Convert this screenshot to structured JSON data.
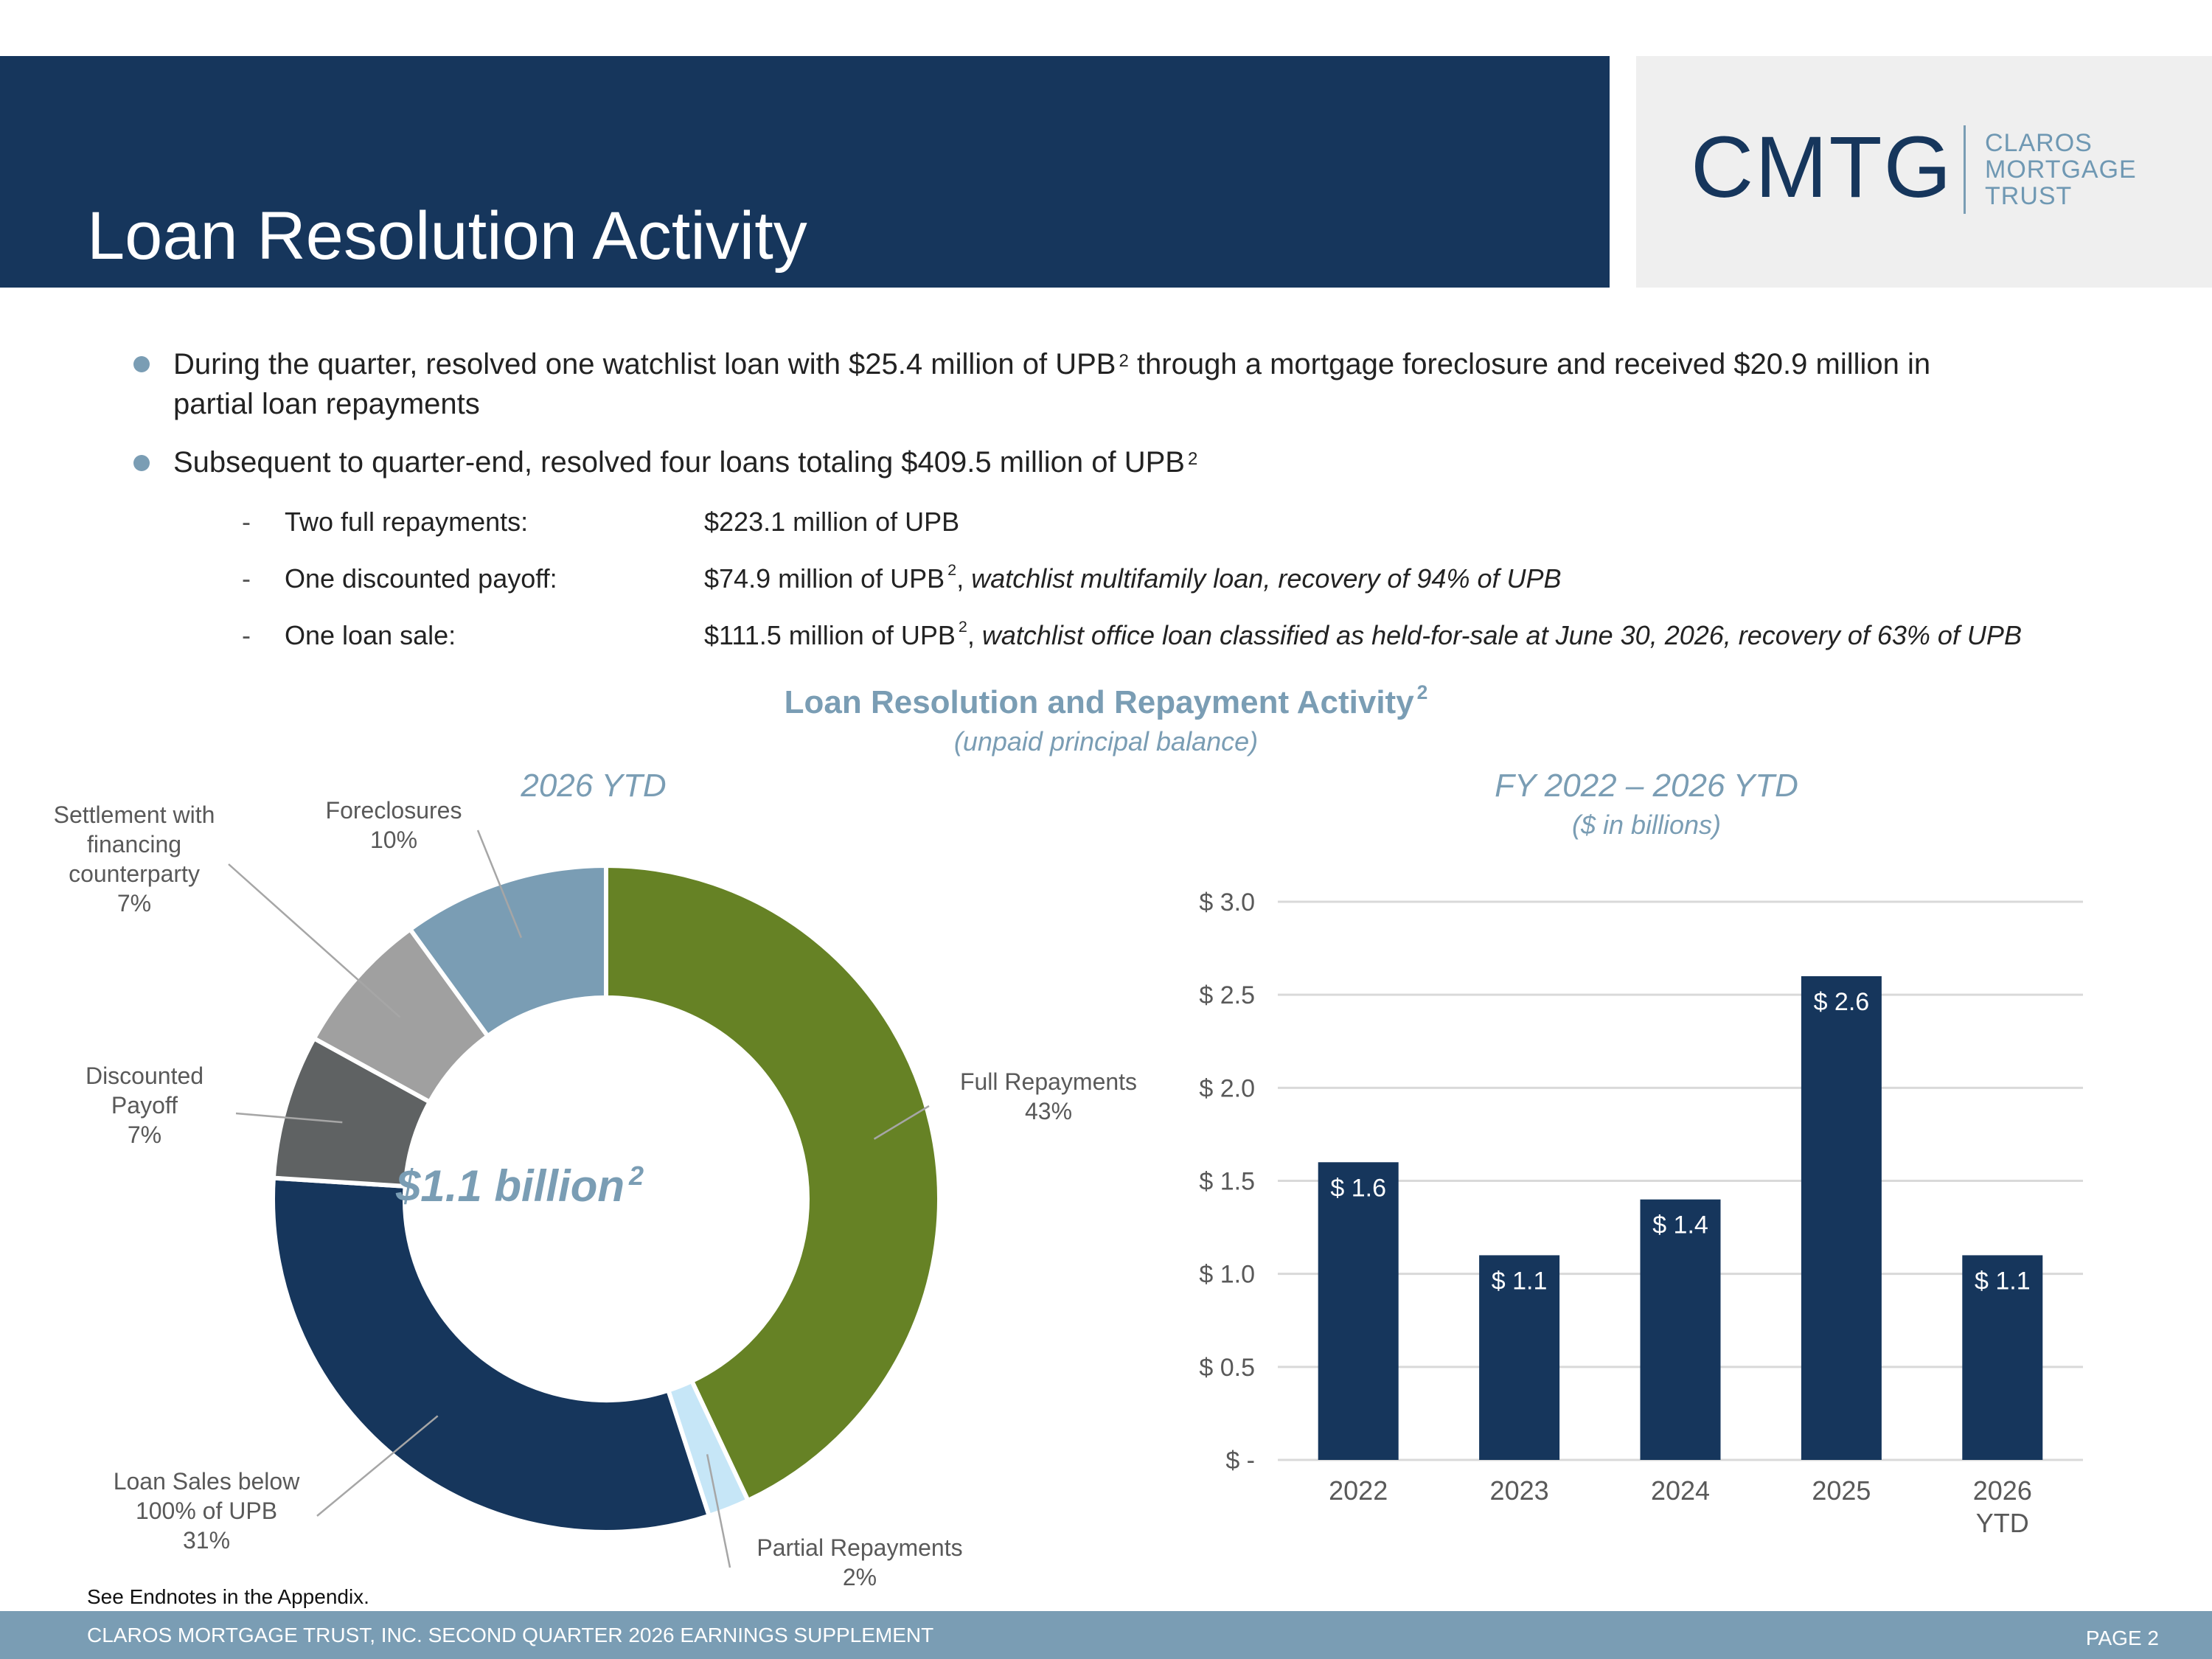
{
  "header": {
    "title": "Loan Resolution Activity",
    "logo": {
      "mark": "CMTG",
      "words": [
        "CLAROS",
        "MORTGAGE",
        "TRUST"
      ]
    }
  },
  "bullets": [
    {
      "text": "During the quarter, resolved one watchlist loan with $25.4 million of UPB",
      "sup": "2",
      "text2": " through a mortgage foreclosure and received $20.9 million in",
      "line2": "partial loan repayments"
    },
    {
      "text": "Subsequent to quarter-end, resolved four loans totaling $409.5 million of UPB",
      "sup": "2"
    }
  ],
  "sub_items": [
    {
      "label": "Two full repayments:",
      "value": "$223.1 million of UPB",
      "sup": "",
      "note": ""
    },
    {
      "label": "One discounted payoff:",
      "value": "$74.9 million of UPB",
      "sup": "2",
      "note": "watchlist multifamily loan, recovery of 94% of UPB"
    },
    {
      "label": "One loan sale:",
      "value": "$111.5 million of UPB",
      "sup": "2",
      "note": "watchlist office loan classified as held-for-sale at June 30, 2026, recovery of 63% of UPB"
    }
  ],
  "chart_section": {
    "title": "Loan Resolution and Repayment Activity",
    "title_sup": "2",
    "subtitle": "(unpaid principal balance)"
  },
  "chart_data": [
    {
      "type": "pie",
      "title": "2026 YTD",
      "center_label": "$1.1 billion",
      "center_sup": "2",
      "slices": [
        {
          "label": "Full Repayments",
          "value": 43,
          "pct_label": "43%",
          "color": "#668225"
        },
        {
          "label": "Partial Repayments",
          "value": 2,
          "pct_label": "2%",
          "color": "#c6e6f7"
        },
        {
          "label": "Loan Sales below 100% of UPB",
          "value": 31,
          "pct_label": "31%",
          "color": "#16365c"
        },
        {
          "label": "Discounted Payoff",
          "value": 7,
          "pct_label": "7%",
          "color": "#5f6263"
        },
        {
          "label": "Settlement with financing counterparty",
          "value": 7,
          "pct_label": "7%",
          "color": "#a0a0a0"
        },
        {
          "label": "Foreclosures",
          "value": 10,
          "pct_label": "10%",
          "color": "#7a9db4"
        }
      ]
    },
    {
      "type": "bar",
      "title": "FY 2022 – 2026 YTD",
      "subtitle": "($ in billions)",
      "categories": [
        "2022",
        "2023",
        "2024",
        "2025",
        "2026 YTD"
      ],
      "values": [
        1.6,
        1.1,
        1.4,
        2.6,
        1.1
      ],
      "value_labels": [
        "$ 1.6",
        "$ 1.1",
        "$ 1.4",
        "$ 2.6",
        "$ 1.1"
      ],
      "y_ticks": [
        0,
        0.5,
        1.0,
        1.5,
        2.0,
        2.5,
        3.0
      ],
      "y_tick_labels": [
        "$ -",
        "$ 0.5",
        "$ 1.0",
        "$ 1.5",
        "$ 2.0",
        "$ 2.5",
        "$ 3.0"
      ],
      "ylim": [
        0,
        3.0
      ],
      "grid": true,
      "bar_color": "#16365c"
    }
  ],
  "footer": {
    "endnote": "See Endnotes in the Appendix.",
    "text": "CLAROS MORTGAGE TRUST, INC. SECOND QUARTER 2026 EARNINGS SUPPLEMENT",
    "page": "PAGE 2"
  }
}
